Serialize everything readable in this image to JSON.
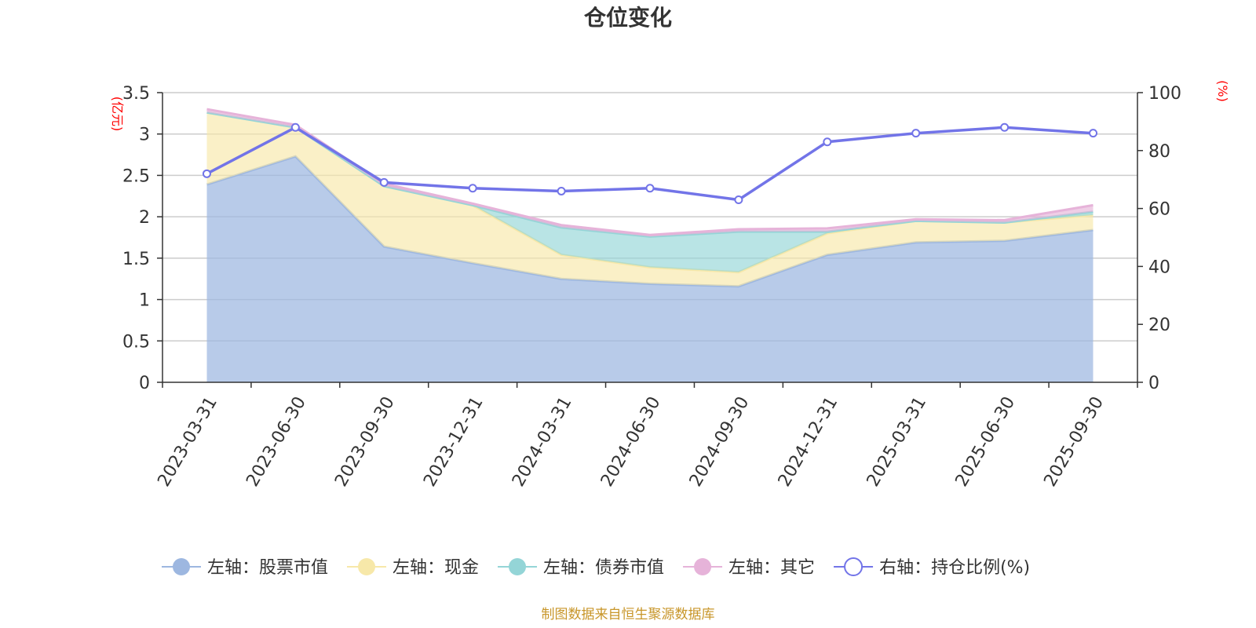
{
  "chart_data": {
    "type": "area",
    "title": "仓位变化",
    "categories": [
      "2023-03-31",
      "2023-06-30",
      "2023-09-30",
      "2023-12-31",
      "2024-03-31",
      "2024-06-30",
      "2024-09-30",
      "2024-12-31",
      "2025-03-31",
      "2025-06-30",
      "2025-09-30"
    ],
    "left_axis": {
      "unit": "(亿元)",
      "ylim": [
        0,
        3.5
      ],
      "ticks": [
        "0",
        "0.5",
        "1",
        "1.5",
        "2",
        "2.5",
        "3",
        "3.5"
      ]
    },
    "right_axis": {
      "unit": "(%)",
      "ylim": [
        0,
        100
      ],
      "ticks": [
        "0",
        "20",
        "40",
        "60",
        "80",
        "100"
      ]
    },
    "series": [
      {
        "name": "左轴：股票市值",
        "axis": "left",
        "stacked": true,
        "color": "#9db7e0",
        "values": [
          2.39,
          2.73,
          1.64,
          1.44,
          1.25,
          1.19,
          1.16,
          1.54,
          1.69,
          1.71,
          1.84
        ]
      },
      {
        "name": "左轴：现金",
        "axis": "left",
        "stacked": true,
        "color": "#f7e8a9",
        "values": [
          0.87,
          0.35,
          0.73,
          0.7,
          0.29,
          0.2,
          0.17,
          0.26,
          0.26,
          0.22,
          0.18
        ]
      },
      {
        "name": "左轴：债券市值",
        "axis": "left",
        "stacked": true,
        "color": "#94d5d7",
        "values": [
          0.0,
          0.0,
          0.0,
          0.0,
          0.33,
          0.37,
          0.49,
          0.02,
          0.0,
          0.0,
          0.04
        ]
      },
      {
        "name": "左轴：其它",
        "axis": "left",
        "stacked": true,
        "color": "#e6b3d9",
        "values": [
          0.04,
          0.03,
          0.03,
          0.02,
          0.03,
          0.02,
          0.03,
          0.04,
          0.02,
          0.03,
          0.08
        ]
      },
      {
        "name": "右轴：持仓比例(%)",
        "axis": "right",
        "type": "line",
        "color": "#7274e8",
        "values": [
          72,
          88,
          69,
          67,
          66,
          67,
          63,
          83,
          86,
          88,
          86
        ]
      }
    ],
    "legend_position": "bottom"
  },
  "source": "制图数据来自恒生聚源数据库"
}
